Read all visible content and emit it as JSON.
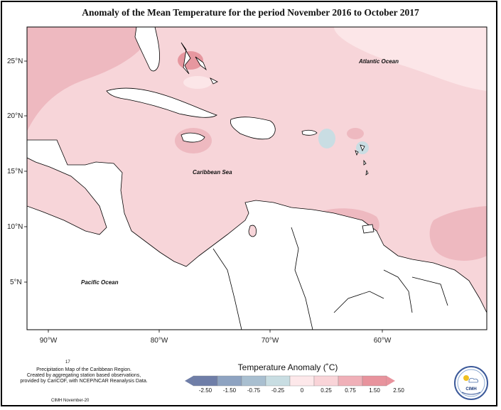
{
  "title": "Anomaly of the Mean Temperature for the period November 2016 to October 2017",
  "lat_labels": [
    {
      "text": "25°N",
      "lat": 25
    },
    {
      "text": "20°N",
      "lat": 20
    },
    {
      "text": "15°N",
      "lat": 15
    },
    {
      "text": "10°N",
      "lat": 10
    },
    {
      "text": "5°N",
      "lat": 5
    }
  ],
  "lon_labels": [
    {
      "text": "90°W",
      "lon": -90
    },
    {
      "text": "80°W",
      "lon": -80
    },
    {
      "text": "70°W",
      "lon": -70
    },
    {
      "text": "60°W",
      "lon": -60
    }
  ],
  "ocean_labels": {
    "atlantic": "Atlantic Ocean",
    "caribbean": "Caribbean Sea",
    "pacific": "Pacific Ocean"
  },
  "footnote_number": "17",
  "notes": [
    "Precipitation Map of the Caribbean Region.",
    "Created by aggregating station based observations,",
    "provided by CariCOF, with NCEP/NCAR Reanalysis Data."
  ],
  "credit": "CIMH November-20",
  "legend": {
    "title": "Temperature Anomaly (˚C)",
    "ticks": [
      "-2.50",
      "-1.50",
      "-0.75",
      "-0.25",
      "0",
      "0.25",
      "0.75",
      "1.50",
      "2.50"
    ],
    "colors": [
      "#6f7ea8",
      "#8ea3c1",
      "#a9bfd0",
      "#c8dde2",
      "#fde8ea",
      "#f9d4d8",
      "#f0b0b8",
      "#e8939d"
    ]
  },
  "logo_text": "CIMH",
  "colors": {
    "base_anomaly": "#f7d5d9",
    "warm_anomaly": "#eeb9c0",
    "hot_anomaly": "#e6979f",
    "light_anomaly": "#fce6e8",
    "cool_anomaly": "#c9dde3",
    "land": "#ffffff"
  }
}
